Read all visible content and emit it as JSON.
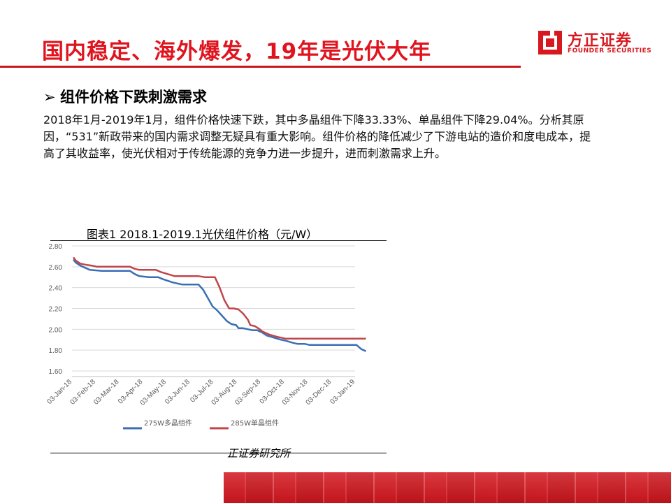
{
  "header": {
    "title": "国内稳定、海外爆发，19年是光伏大年"
  },
  "logo": {
    "cn": "方正证券",
    "en": "FOUNDER SECURITIES"
  },
  "section": {
    "bullet": "➢",
    "heading": "组件价格下跌刺激需求"
  },
  "body": {
    "text": "2018年1月-2019年1月，组件价格快速下跌，其中多晶组件下降33.33%、单晶组件下降29.04%。分析其原因，“531”新政带来的国内需求调整无疑具有重大影响。组件价格的降低减少了下游电站的造价和度电成本，提高了其收益率，使光伏相对于传统能源的竞争力进一步提升，进而刺激需求上升。"
  },
  "figure": {
    "caption": "图表1 2018.1-2019.1光伏组件价格（元/W）",
    "source": "正证券研究所"
  },
  "colors": {
    "accent": "#e0141e",
    "series_blue": "#3a6fb5",
    "series_red": "#c0464a"
  },
  "chart_data": {
    "type": "line",
    "title": "",
    "xlabel": "",
    "ylabel": "",
    "ylim": [
      1.6,
      2.8
    ],
    "yticks": [
      "2.80",
      "2.60",
      "2.40",
      "2.20",
      "2.00",
      "1.80",
      "1.60"
    ],
    "xticks": [
      "03-Jan-18",
      "03-Feb-18",
      "03-Mar-18",
      "03-Apr-18",
      "03-May-18",
      "03-Jun-18",
      "03-Jul-18",
      "03-Aug-18",
      "03-Sep-18",
      "03-Oct-18",
      "03-Nov-18",
      "03-Dec-18",
      "03-Jan-19"
    ],
    "grid": true,
    "legend": "bottom",
    "series": [
      {
        "name": "275W多晶组件",
        "color": "#3a6fb5",
        "points": [
          [
            0,
            2.67
          ],
          [
            0.1,
            2.64
          ],
          [
            0.3,
            2.61
          ],
          [
            0.5,
            2.59
          ],
          [
            0.7,
            2.57
          ],
          [
            1.2,
            2.56
          ],
          [
            1.6,
            2.56
          ],
          [
            2.0,
            2.56
          ],
          [
            2.4,
            2.56
          ],
          [
            2.6,
            2.53
          ],
          [
            2.8,
            2.51
          ],
          [
            3.2,
            2.5
          ],
          [
            3.6,
            2.5
          ],
          [
            3.8,
            2.48
          ],
          [
            4.2,
            2.45
          ],
          [
            4.6,
            2.43
          ],
          [
            5.0,
            2.43
          ],
          [
            5.3,
            2.43
          ],
          [
            5.5,
            2.38
          ],
          [
            5.7,
            2.3
          ],
          [
            5.9,
            2.22
          ],
          [
            6.1,
            2.18
          ],
          [
            6.3,
            2.13
          ],
          [
            6.5,
            2.08
          ],
          [
            6.7,
            2.05
          ],
          [
            6.9,
            2.04
          ],
          [
            7.0,
            2.01
          ],
          [
            7.2,
            2.01
          ],
          [
            7.4,
            2.0
          ],
          [
            7.6,
            1.99
          ],
          [
            7.8,
            1.99
          ],
          [
            8.0,
            1.97
          ],
          [
            8.2,
            1.94
          ],
          [
            8.5,
            1.92
          ],
          [
            8.8,
            1.9
          ],
          [
            9.0,
            1.89
          ],
          [
            9.3,
            1.87
          ],
          [
            9.5,
            1.86
          ],
          [
            9.8,
            1.86
          ],
          [
            10.0,
            1.85
          ],
          [
            10.5,
            1.85
          ],
          [
            11.0,
            1.85
          ],
          [
            11.5,
            1.85
          ],
          [
            11.8,
            1.85
          ],
          [
            12.0,
            1.85
          ],
          [
            12.2,
            1.81
          ],
          [
            12.4,
            1.79
          ]
        ]
      },
      {
        "name": "285W单晶组件",
        "color": "#c0464a",
        "points": [
          [
            0,
            2.69
          ],
          [
            0.1,
            2.66
          ],
          [
            0.3,
            2.63
          ],
          [
            0.5,
            2.62
          ],
          [
            0.8,
            2.61
          ],
          [
            1.0,
            2.6
          ],
          [
            1.5,
            2.6
          ],
          [
            2.0,
            2.6
          ],
          [
            2.4,
            2.6
          ],
          [
            2.6,
            2.58
          ],
          [
            2.8,
            2.57
          ],
          [
            3.2,
            2.57
          ],
          [
            3.5,
            2.57
          ],
          [
            3.7,
            2.55
          ],
          [
            4.0,
            2.53
          ],
          [
            4.3,
            2.51
          ],
          [
            4.7,
            2.51
          ],
          [
            5.0,
            2.51
          ],
          [
            5.3,
            2.51
          ],
          [
            5.6,
            2.5
          ],
          [
            6.0,
            2.5
          ],
          [
            6.2,
            2.4
          ],
          [
            6.4,
            2.28
          ],
          [
            6.6,
            2.2
          ],
          [
            6.8,
            2.2
          ],
          [
            7.0,
            2.19
          ],
          [
            7.2,
            2.15
          ],
          [
            7.4,
            2.09
          ],
          [
            7.5,
            2.04
          ],
          [
            7.7,
            2.03
          ],
          [
            7.9,
            2.0
          ],
          [
            8.0,
            1.98
          ],
          [
            8.3,
            1.95
          ],
          [
            8.6,
            1.93
          ],
          [
            8.8,
            1.92
          ],
          [
            9.0,
            1.91
          ],
          [
            9.5,
            1.91
          ],
          [
            10.0,
            1.91
          ],
          [
            10.5,
            1.91
          ],
          [
            11.0,
            1.91
          ],
          [
            11.5,
            1.91
          ],
          [
            12.0,
            1.91
          ],
          [
            12.4,
            1.91
          ]
        ]
      }
    ]
  }
}
